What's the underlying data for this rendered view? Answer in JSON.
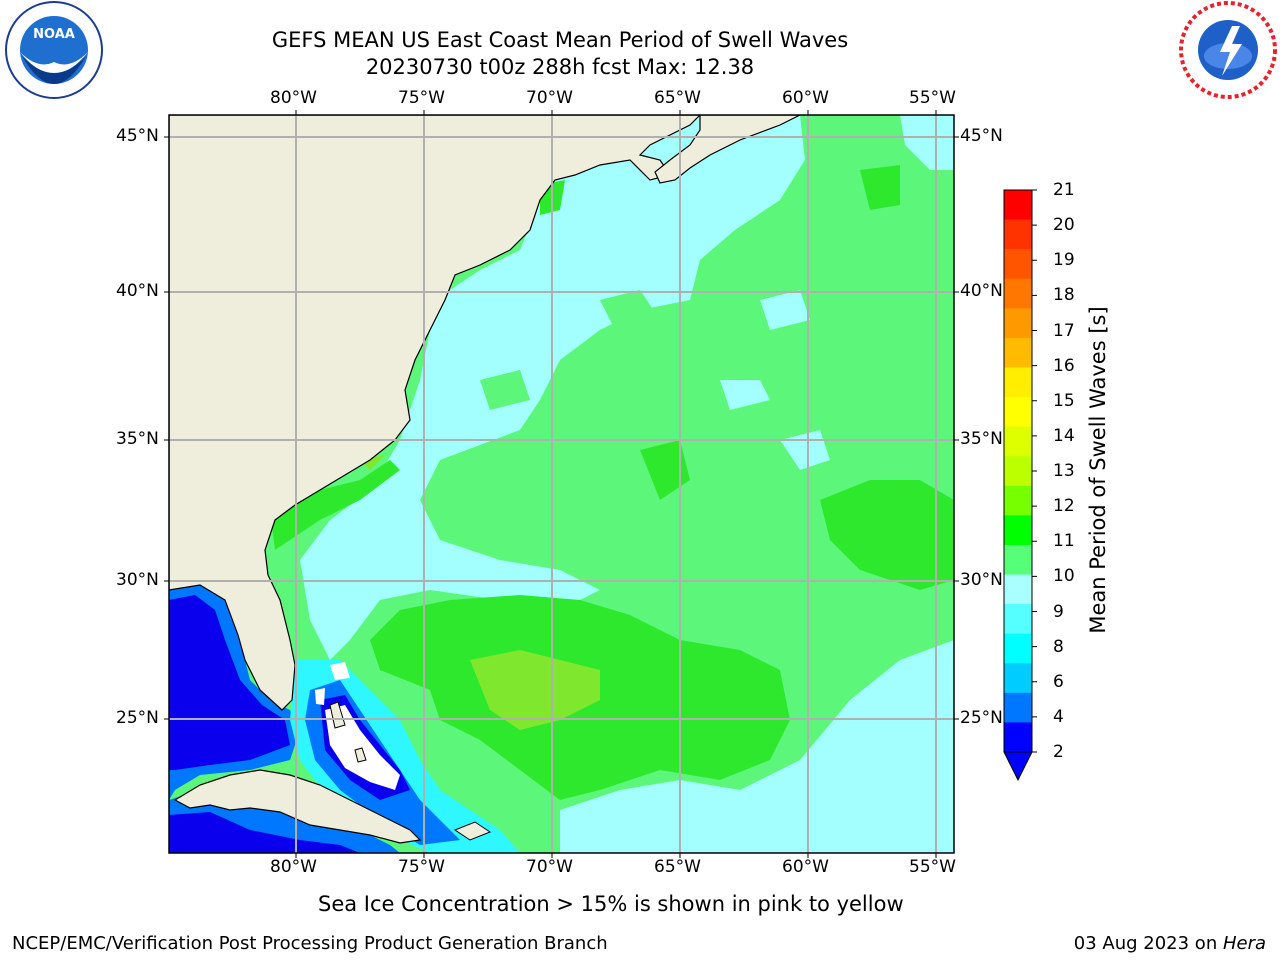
{
  "title_line1": "GEFS MEAN US East Coast Mean Period of Swell Waves",
  "title_line2": "20230730 t00z 288h fcst   Max: 12.38",
  "lon_labels": [
    "80°W",
    "75°W",
    "70°W",
    "65°W",
    "60°W",
    "55°W"
  ],
  "lat_labels": [
    "45°N",
    "40°N",
    "35°N",
    "30°N",
    "25°N"
  ],
  "colorbar": {
    "title": "Mean Period of Swell Waves [s]",
    "tick_labels": [
      "21",
      "20",
      "19",
      "18",
      "17",
      "16",
      "15",
      "14",
      "13",
      "12",
      "11",
      "10",
      "9",
      "8",
      "6",
      "4",
      "2"
    ],
    "colors": [
      "#ff0000",
      "#ff3300",
      "#ff5500",
      "#ff7700",
      "#ff9900",
      "#ffbb00",
      "#ffee00",
      "#ffff00",
      "#ddff00",
      "#bbff00",
      "#77ff00",
      "#00ff00",
      "#55ff77",
      "#aaffff",
      "#55ffff",
      "#00ffff",
      "#00ccff",
      "#0077ff",
      "#0000ff"
    ]
  },
  "map": {
    "land_color": "#efeddc",
    "ocean_main": "#5cf77a",
    "ocean_light": "#a3fffe",
    "ocean_green": "#2ee82e",
    "ocean_yellowgreen": "#7fe82e",
    "ocean_cyan": "#2ff7ff",
    "ocean_blue": "#0b00ee",
    "ocean_midblue": "#0077ff",
    "grid_color": "#b0b0b0"
  },
  "sea_ice_note": "Sea Ice Concentration > 15% is shown in pink to yellow",
  "footer_left": "NCEP/EMC/Verification Post Processing Product Generation Branch",
  "footer_right_date": "03 Aug 2023 on ",
  "footer_right_machine": "Hera",
  "logos": {
    "left_icon": "noaa-logo",
    "right_icon": "nws-logo"
  }
}
